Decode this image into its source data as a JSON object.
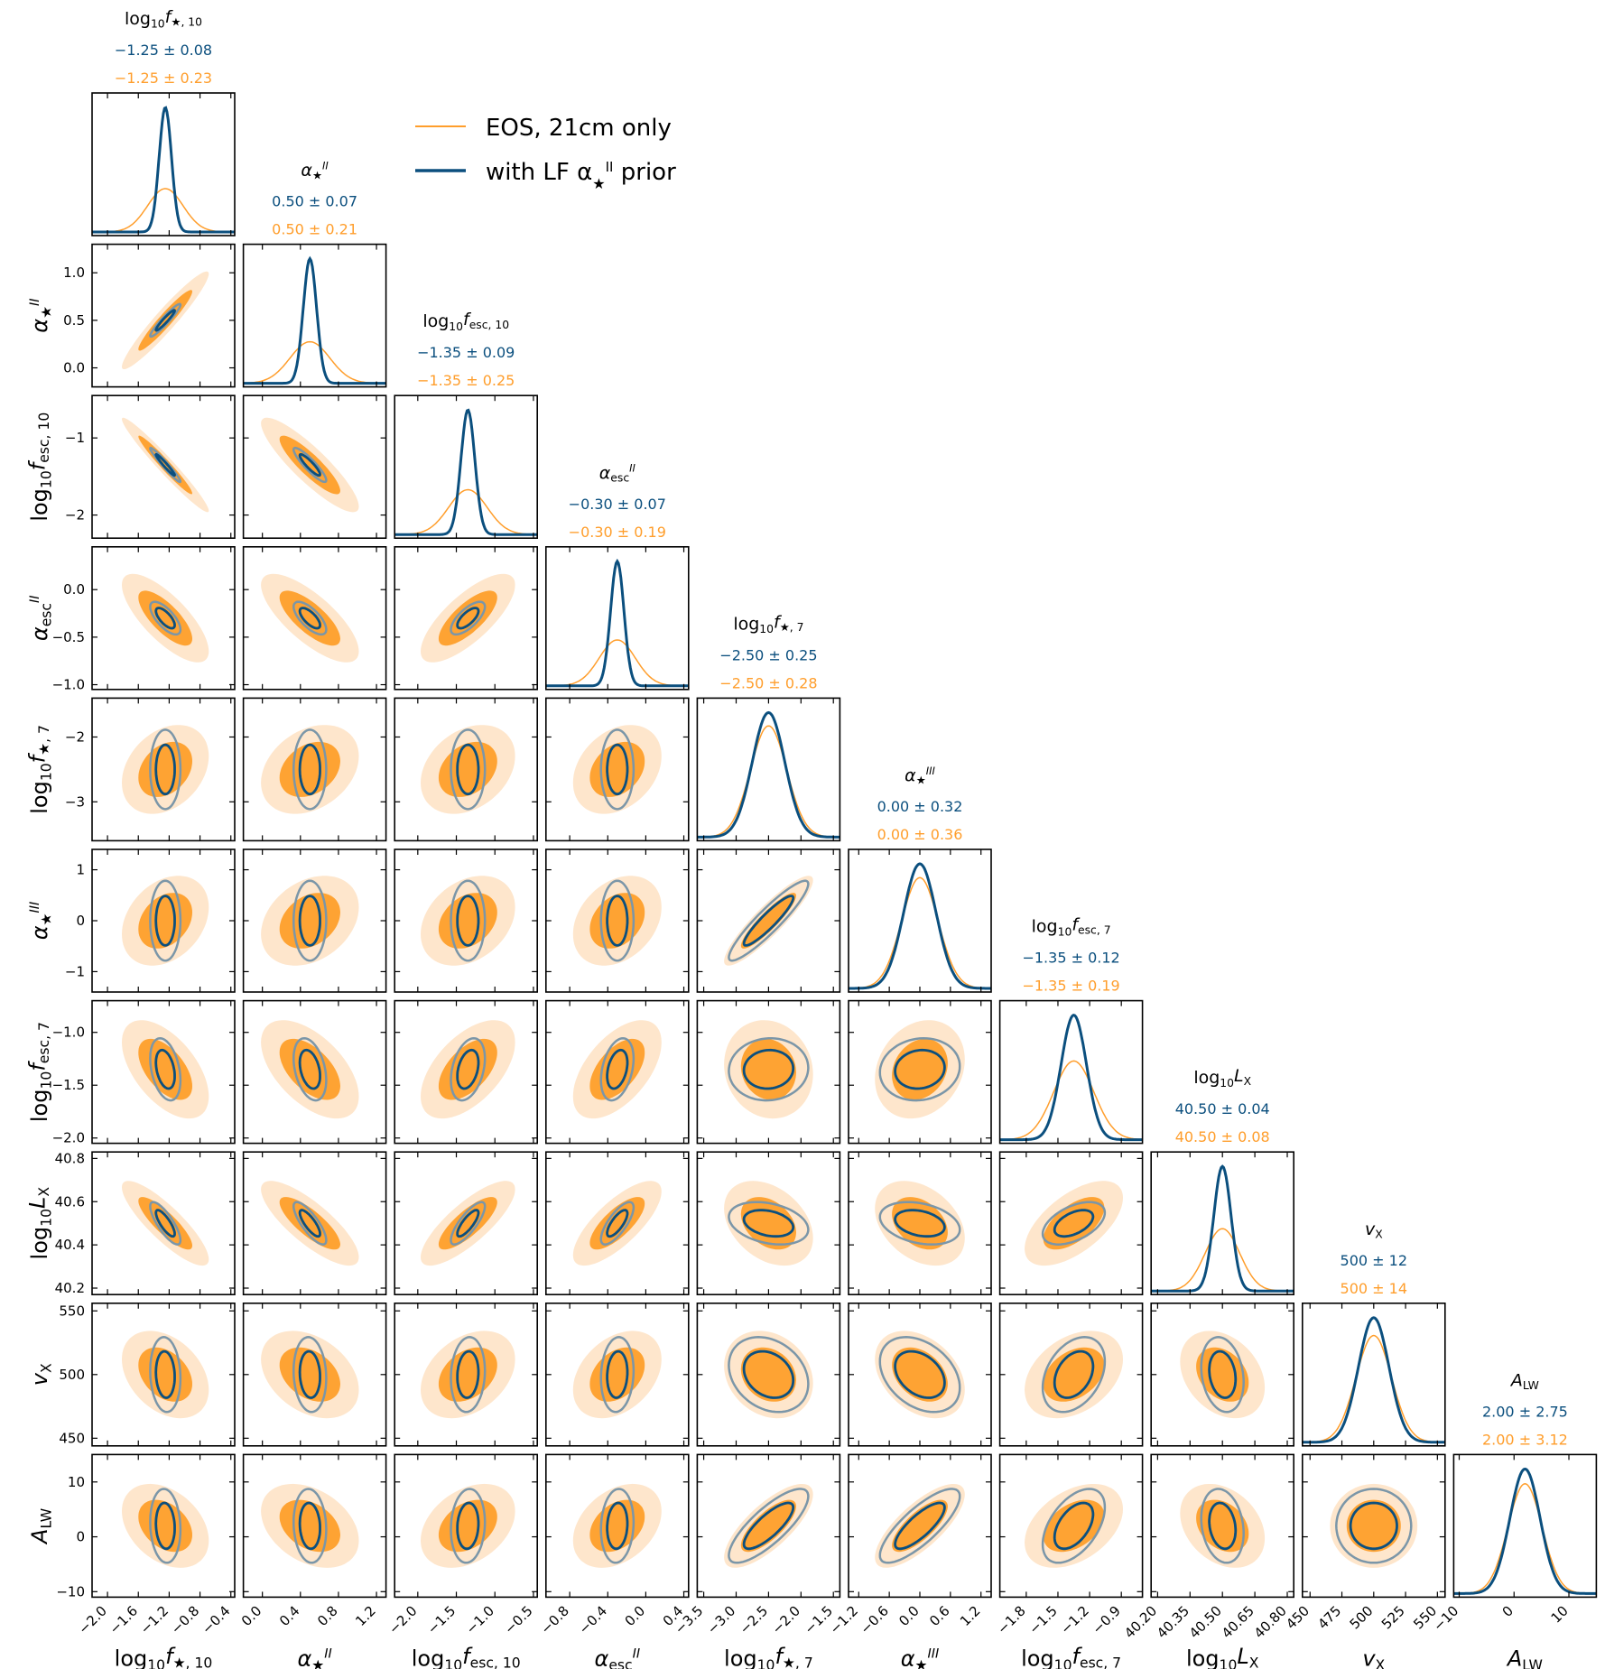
{
  "chart_data": {
    "type": "scatter",
    "subtype": "corner-plot",
    "params": [
      {
        "id": "lfs10",
        "label": "log10 f★,10",
        "mean": -1.25,
        "sd_constrained": 0.08,
        "sd_wide": 0.23,
        "range": [
          -2.2,
          -0.35
        ],
        "ticks": [
          -2.0,
          -1.6,
          -1.2,
          -0.8,
          -0.4
        ],
        "tick_labels": [
          "−2.0",
          "−1.6",
          "−1.2",
          "−0.8",
          "−0.4"
        ],
        "stat_constrained": "−1.25 ± 0.08",
        "stat_wide": "−1.25 ± 0.23"
      },
      {
        "id": "as2",
        "label": "α★II",
        "mean": 0.5,
        "sd_constrained": 0.07,
        "sd_wide": 0.21,
        "range": [
          -0.2,
          1.3
        ],
        "ticks": [
          0.0,
          0.4,
          0.8,
          1.2
        ],
        "tick_labels": [
          "0.0",
          "0.4",
          "0.8",
          "1.2"
        ],
        "stat_constrained": "0.50 ± 0.07",
        "stat_wide": "0.50 ± 0.21"
      },
      {
        "id": "lfe10",
        "label": "log10 fesc,10",
        "mean": -1.35,
        "sd_constrained": 0.09,
        "sd_wide": 0.25,
        "range": [
          -2.3,
          -0.45
        ],
        "ticks": [
          -2.0,
          -1.5,
          -1.0,
          -0.5
        ],
        "tick_labels": [
          "−2.0",
          "−1.5",
          "−1.0",
          "−0.5"
        ],
        "stat_constrained": "−1.35 ± 0.09",
        "stat_wide": "−1.35 ± 0.25"
      },
      {
        "id": "ae2",
        "label": "αescII",
        "mean": -0.3,
        "sd_constrained": 0.07,
        "sd_wide": 0.19,
        "range": [
          -1.05,
          0.45
        ],
        "ticks": [
          -0.8,
          -0.4,
          0.0,
          0.4
        ],
        "tick_labels": [
          "−0.8",
          "−0.4",
          "0.0",
          "0.4"
        ],
        "stat_constrained": "−0.30 ± 0.07",
        "stat_wide": "−0.30 ± 0.19"
      },
      {
        "id": "lfs7",
        "label": "log10 f★,7",
        "mean": -2.5,
        "sd_constrained": 0.25,
        "sd_wide": 0.28,
        "range": [
          -3.6,
          -1.4
        ],
        "ticks": [
          -3.5,
          -3.0,
          -2.5,
          -2.0,
          -1.5
        ],
        "tick_labels": [
          "−3.5",
          "−3.0",
          "−2.5",
          "−2.0",
          "−1.5"
        ],
        "stat_constrained": "−2.50 ± 0.25",
        "stat_wide": "−2.50 ± 0.28"
      },
      {
        "id": "as3",
        "label": "α★III",
        "mean": 0.0,
        "sd_constrained": 0.32,
        "sd_wide": 0.36,
        "range": [
          -1.4,
          1.4
        ],
        "ticks": [
          -1.2,
          -0.6,
          0.0,
          0.6,
          1.2
        ],
        "tick_labels": [
          "−1.2",
          "−0.6",
          "0.0",
          "0.6",
          "1.2"
        ],
        "stat_constrained": "0.00 ± 0.32",
        "stat_wide": "0.00 ± 0.36"
      },
      {
        "id": "lfe7",
        "label": "log10 fesc,7",
        "mean": -1.35,
        "sd_constrained": 0.12,
        "sd_wide": 0.19,
        "range": [
          -2.05,
          -0.7
        ],
        "ticks": [
          -1.8,
          -1.5,
          -1.2,
          -0.9
        ],
        "tick_labels": [
          "−1.8",
          "−1.5",
          "−1.2",
          "−0.9"
        ],
        "stat_constrained": "−1.35 ± 0.12",
        "stat_wide": "−1.35 ± 0.19"
      },
      {
        "id": "llx",
        "label": "log10 LX",
        "mean": 40.5,
        "sd_constrained": 0.04,
        "sd_wide": 0.08,
        "range": [
          40.17,
          40.83
        ],
        "ticks": [
          40.2,
          40.35,
          40.5,
          40.65,
          40.8
        ],
        "tick_labels": [
          "40.20",
          "40.35",
          "40.50",
          "40.65",
          "40.80"
        ],
        "stat_constrained": "40.50 ± 0.04",
        "stat_wide": "40.50 ± 0.08"
      },
      {
        "id": "vx",
        "label": "vX",
        "mean": 500,
        "sd_constrained": 12,
        "sd_wide": 14,
        "range": [
          444,
          556
        ],
        "ticks": [
          450,
          475,
          500,
          525,
          550
        ],
        "tick_labels": [
          "450",
          "475",
          "500",
          "525",
          "550"
        ],
        "stat_constrained": "500 ± 12",
        "stat_wide": "500 ± 14"
      },
      {
        "id": "alw",
        "label": "ALW",
        "mean": 2.0,
        "sd_constrained": 2.75,
        "sd_wide": 3.12,
        "range": [
          -11,
          15
        ],
        "ticks": [
          -10,
          0,
          10
        ],
        "tick_labels": [
          "−10",
          "0",
          "10"
        ],
        "stat_constrained": "2.00 ± 2.75",
        "stat_wide": "2.00 ± 3.12"
      }
    ],
    "row_ticks": {
      "as2": {
        "values": [
          0.0,
          0.5,
          1.0
        ],
        "labels": [
          "0.0",
          "0.5",
          "1.0"
        ]
      },
      "lfe10": {
        "values": [
          -2,
          -1
        ],
        "labels": [
          "−2",
          "−1"
        ]
      },
      "ae2": {
        "values": [
          -1.0,
          -0.5,
          0.0
        ],
        "labels": [
          "−1.0",
          "−0.5",
          "0.0"
        ]
      },
      "lfs7": {
        "values": [
          -3,
          -2
        ],
        "labels": [
          "−3",
          "−2"
        ]
      },
      "as3": {
        "values": [
          -1,
          0,
          1
        ],
        "labels": [
          "−1",
          "0",
          "1"
        ]
      },
      "lfe7": {
        "values": [
          -2.0,
          -1.5,
          -1.0
        ],
        "labels": [
          "−2.0",
          "−1.5",
          "−1.0"
        ]
      },
      "llx": {
        "values": [
          40.2,
          40.4,
          40.6,
          40.8
        ],
        "labels": [
          "40.2",
          "40.4",
          "40.6",
          "40.8"
        ]
      },
      "vx": {
        "values": [
          450,
          500,
          550
        ],
        "labels": [
          "450",
          "500",
          "550"
        ]
      },
      "alw": {
        "values": [
          -10,
          0,
          10
        ],
        "labels": [
          "−10",
          "0",
          "10"
        ]
      }
    },
    "correlations_wide": [
      [
        0,
        0.95,
        -0.97,
        -0.75,
        0.3,
        0.3,
        -0.55,
        -0.85,
        -0.35,
        -0.35
      ],
      [
        0,
        0,
        -0.88,
        -0.75,
        0.3,
        0.3,
        -0.55,
        -0.8,
        -0.35,
        -0.35
      ],
      [
        0,
        0,
        0,
        0.75,
        0.3,
        0.3,
        0.55,
        0.8,
        0.35,
        0.35
      ],
      [
        0,
        0,
        0,
        0,
        0.3,
        0.3,
        0.55,
        0.75,
        0.35,
        0.35
      ],
      [
        0,
        0,
        0,
        0,
        0,
        0.9,
        -0.1,
        -0.35,
        -0.2,
        0.75
      ],
      [
        0,
        0,
        0,
        0,
        0,
        0,
        0.2,
        -0.35,
        -0.35,
        0.75
      ],
      [
        0,
        0,
        0,
        0,
        0,
        0,
        0,
        0.6,
        0.35,
        0.4
      ],
      [
        0,
        0,
        0,
        0,
        0,
        0,
        0,
        0,
        -0.3,
        -0.3
      ],
      [
        0,
        0,
        0,
        0,
        0,
        0,
        0,
        0,
        0,
        0.0
      ]
    ],
    "correlations_constrained": [
      [
        0,
        0.95,
        -0.97,
        -0.7,
        0.0,
        0.0,
        -0.35,
        -0.8,
        -0.1,
        -0.1
      ],
      [
        0,
        0,
        -0.9,
        -0.7,
        0.0,
        0.0,
        -0.35,
        -0.8,
        -0.1,
        -0.1
      ],
      [
        0,
        0,
        0,
        0.7,
        0.0,
        0.0,
        0.35,
        0.8,
        0.1,
        0.1
      ],
      [
        0,
        0,
        0,
        0,
        0.0,
        0.0,
        0.35,
        0.75,
        0.1,
        0.1
      ],
      [
        0,
        0,
        0,
        0,
        0,
        0.92,
        0.05,
        -0.3,
        -0.25,
        0.8
      ],
      [
        0,
        0,
        0,
        0,
        0,
        0,
        0.1,
        -0.3,
        -0.35,
        0.8
      ],
      [
        0,
        0,
        0,
        0,
        0,
        0,
        0,
        0.5,
        0.35,
        0.5
      ],
      [
        0,
        0,
        0,
        0,
        0,
        0,
        0,
        0,
        -0.2,
        -0.2
      ],
      [
        0,
        0,
        0,
        0,
        0,
        0,
        0,
        0,
        0,
        0.0
      ]
    ],
    "series": [
      {
        "name": "EOS, 21cm only",
        "color": "#ff9e2c",
        "style": "filled contours"
      },
      {
        "name": "with LF α★II prior",
        "color": "#0b4f7e",
        "style": "line contours"
      }
    ],
    "colors": {
      "wide_fill_1": "#fee6cc",
      "wide_fill_2": "#fea333",
      "outer_contour": "#7b96a8",
      "inner_contour": "#0b4f7e"
    },
    "legend_position": "upper-center"
  }
}
